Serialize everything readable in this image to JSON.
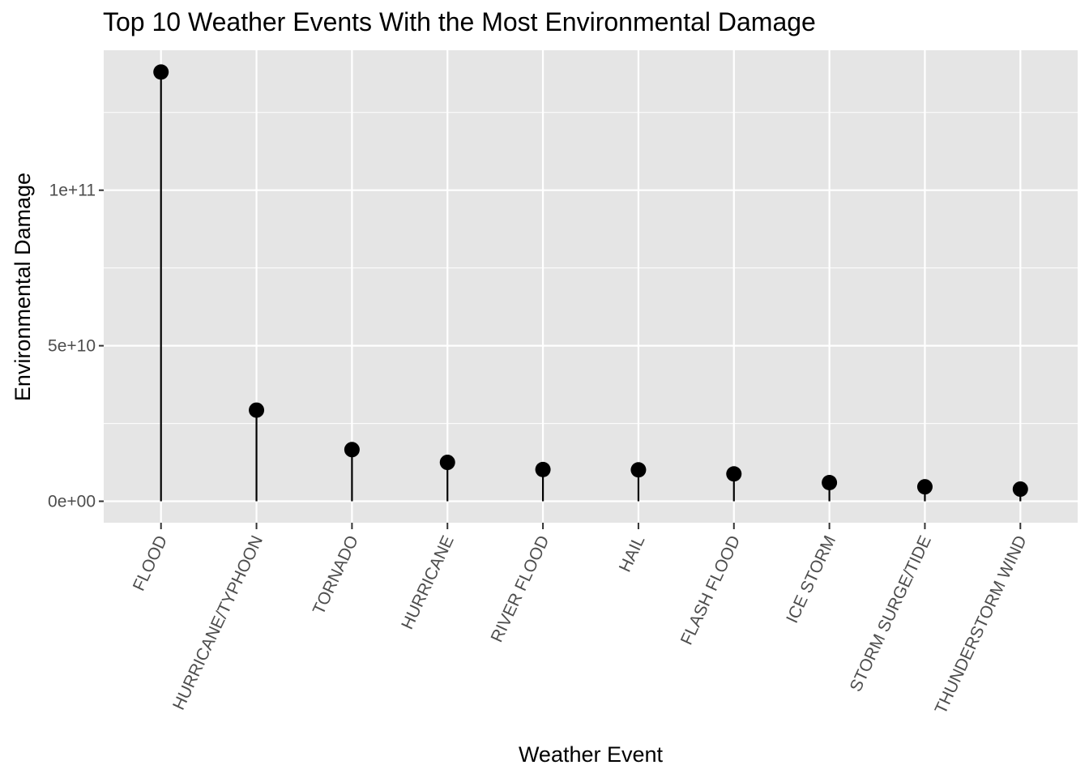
{
  "chart_data": {
    "type": "lollipop",
    "title": "Top 10 Weather Events With the Most Environmental Damage",
    "xlabel": "Weather Event",
    "ylabel": "Environmental Damage",
    "categories": [
      "FLOOD",
      "HURRICANE/TYPHOON",
      "TORNADO",
      "HURRICANE",
      "RIVER FLOOD",
      "HAIL",
      "FLASH FLOOD",
      "ICE STORM",
      "STORM SURGE/TIDE",
      "THUNDERSTORM WIND"
    ],
    "values": [
      138000000000,
      29300000000,
      16600000000,
      12500000000,
      10200000000,
      10100000000,
      8800000000,
      6000000000,
      4650000000,
      3900000000
    ],
    "ylim": [
      -6900000000,
      145000000000
    ],
    "yticks": [
      {
        "value": 0,
        "label": "0e+00"
      },
      {
        "value": 50000000000,
        "label": "5e+10"
      },
      {
        "value": 100000000000,
        "label": "1e+11"
      }
    ],
    "y_minor_ticks": [
      25000000000,
      75000000000,
      125000000000
    ],
    "grid": true,
    "legend": "none",
    "colors": {
      "panel": "#e5e5e5",
      "grid": "#ffffff",
      "mark": "#000000",
      "tick_text": "#4d4d4d",
      "tick_mark": "#333333"
    }
  }
}
